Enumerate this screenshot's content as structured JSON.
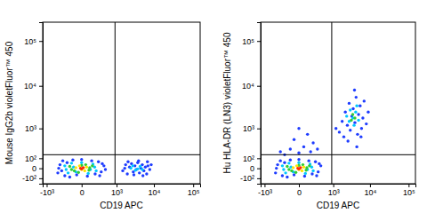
{
  "chart_data": [
    {
      "type": "scatter",
      "log": true,
      "x_label": "CD19 APC",
      "y_label": "Mouse IgG2b violetFluor™ 450",
      "xlim": [
        -1300,
        150000
      ],
      "ylim": [
        -180,
        262144
      ],
      "xticks": [
        {
          "value": -1000,
          "label": "-10³"
        },
        0,
        {
          "value": 1000,
          "label": "10³"
        },
        {
          "value": 10000,
          "label": "10⁴"
        },
        {
          "value": 100000,
          "label": "10⁵"
        }
      ],
      "yticks": [
        {
          "value": -100,
          "label": "-10²"
        },
        0,
        {
          "value": 100,
          "label": "10²"
        },
        {
          "value": 1000,
          "label": "10³"
        },
        {
          "value": 10000,
          "label": "10⁴"
        },
        {
          "value": 100000,
          "label": "10⁵"
        }
      ],
      "quadrant": {
        "x": 900,
        "y": 150
      },
      "series": [
        {
          "color": "#1e3cff",
          "x": [
            -450,
            -380,
            -300,
            -250,
            -200,
            -150,
            -100,
            -50,
            0,
            60,
            120,
            180,
            250,
            320,
            400,
            450,
            -420,
            350,
            -330,
            280,
            1500,
            1800,
            2000,
            2300,
            2600,
            2900,
            3200,
            3500,
            3800,
            4200,
            4600,
            5000,
            5500,
            6000,
            6500,
            7000,
            7800,
            8500,
            2100,
            3000,
            4000,
            5200,
            1700,
            6800
          ],
          "values": [
            -40,
            30,
            70,
            -70,
            50,
            -85,
            80,
            -60,
            85,
            -75,
            70,
            -50,
            60,
            -30,
            20,
            -10,
            0,
            40,
            -20,
            -70,
            -20,
            30,
            -50,
            10,
            40,
            -30,
            20,
            -10,
            50,
            -40,
            0,
            30,
            -20,
            10,
            -50,
            20,
            -10,
            30,
            60,
            -60,
            70,
            -70,
            0,
            60
          ]
        },
        {
          "color": "#00c8ff",
          "x": [
            -250,
            -180,
            -120,
            -60,
            0,
            70,
            140,
            200,
            -220,
            170,
            -90,
            100,
            2500,
            3300,
            4400,
            3800,
            2800,
            5000
          ],
          "values": [
            20,
            -40,
            45,
            -30,
            50,
            -45,
            35,
            -20,
            -10,
            10,
            10,
            -10,
            0,
            -15,
            15,
            -5,
            20,
            -10
          ]
        },
        {
          "color": "#33cc33",
          "x": [
            -150,
            -80,
            0,
            80,
            130,
            -30,
            40,
            -120,
            90
          ],
          "values": [
            15,
            -20,
            25,
            -15,
            20,
            -35,
            30,
            -10,
            5
          ]
        },
        {
          "color": "#ffe600",
          "x": [
            -60,
            0,
            50,
            -20,
            30
          ],
          "values": [
            5,
            -10,
            10,
            20,
            -20
          ]
        },
        {
          "color": "#ff2a00",
          "x": [
            -10,
            15,
            0
          ],
          "values": [
            0,
            5,
            -5
          ]
        }
      ]
    },
    {
      "type": "scatter",
      "log": true,
      "x_label": "CD19 APC",
      "y_label": "Hu HLA-DR (LN3) violetFluor™ 450",
      "xlim": [
        -1300,
        150000
      ],
      "ylim": [
        -180,
        262144
      ],
      "xticks": [
        {
          "value": -1000,
          "label": "-10³"
        },
        0,
        {
          "value": 1000,
          "label": "10³"
        },
        {
          "value": 10000,
          "label": "10⁴"
        },
        {
          "value": 100000,
          "label": "10⁵"
        }
      ],
      "yticks": [
        {
          "value": -100,
          "label": "-10²"
        },
        0,
        {
          "value": 100,
          "label": "10²"
        },
        {
          "value": 1000,
          "label": "10³"
        },
        {
          "value": 10000,
          "label": "10⁴"
        },
        {
          "value": 100000,
          "label": "10⁵"
        }
      ],
      "quadrant": {
        "x": 900,
        "y": 150
      },
      "series": [
        {
          "color": "#1e3cff",
          "x": [
            -450,
            -380,
            -300,
            -250,
            -200,
            -150,
            -100,
            -50,
            0,
            60,
            120,
            180,
            250,
            320,
            400,
            -420,
            350,
            280,
            -200,
            0,
            150,
            -100,
            50,
            200,
            -50,
            100,
            0,
            300,
            -300,
            1500,
            1800,
            2000,
            2200,
            2500,
            2800,
            3000,
            3300,
            3600,
            4000,
            4300,
            4700,
            5000,
            5500,
            6000,
            6500,
            7000,
            8000,
            9000,
            3900,
            2600,
            5800,
            4500,
            1200
          ],
          "values": [
            -40,
            30,
            70,
            -70,
            50,
            -85,
            80,
            -60,
            85,
            -75,
            70,
            -50,
            60,
            -30,
            20,
            0,
            40,
            -70,
            150,
            180,
            200,
            250,
            300,
            400,
            500,
            700,
            1000,
            250,
            200,
            800,
            1500,
            600,
            2500,
            1200,
            4000,
            900,
            2000,
            3000,
            1400,
            5500,
            700,
            2200,
            3500,
            1000,
            1800,
            4500,
            1300,
            2500,
            8000,
            450,
            600,
            300,
            1000
          ]
        },
        {
          "color": "#00c8ff",
          "x": [
            -250,
            -180,
            -120,
            -60,
            0,
            70,
            140,
            200,
            -220,
            170,
            -90,
            100,
            2800,
            3500,
            4200,
            3000,
            5000,
            3800,
            4500,
            2400
          ],
          "values": [
            20,
            -40,
            45,
            -30,
            50,
            -45,
            35,
            -20,
            -10,
            10,
            10,
            -10,
            1500,
            1800,
            2500,
            2800,
            1600,
            1200,
            3500,
            2000
          ]
        },
        {
          "color": "#33cc33",
          "x": [
            -150,
            -80,
            0,
            80,
            130,
            -30,
            40,
            -120,
            90,
            3500,
            4000,
            3200
          ],
          "values": [
            15,
            -20,
            25,
            -15,
            20,
            -35,
            30,
            -10,
            5,
            2200,
            1800,
            1600
          ]
        },
        {
          "color": "#ffe600",
          "x": [
            -60,
            0,
            50,
            -20,
            30
          ],
          "values": [
            5,
            -10,
            10,
            20,
            -20
          ]
        },
        {
          "color": "#ff2a00",
          "x": [
            -10,
            15,
            0
          ],
          "values": [
            0,
            5,
            -5
          ]
        }
      ]
    }
  ]
}
